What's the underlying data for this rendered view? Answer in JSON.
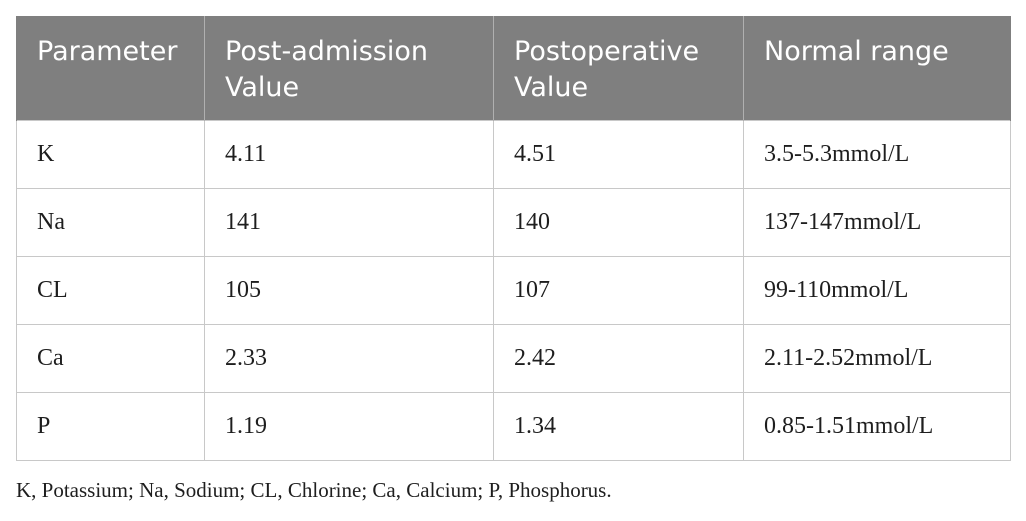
{
  "table": {
    "headers": [
      "Parameter",
      "Post-admission Value",
      "Postoperative Value",
      "Normal range"
    ],
    "rows": [
      [
        "K",
        "4.11",
        "4.51",
        "3.5-5.3mmol/L"
      ],
      [
        "Na",
        "141",
        "140",
        "137-147mmol/L"
      ],
      [
        "CL",
        "105",
        "107",
        "99-110mmol/L"
      ],
      [
        "Ca",
        "2.33",
        "2.42",
        "2.11-2.52mmol/L"
      ],
      [
        "P",
        "1.19",
        "1.34",
        "0.85-1.51mmol/L"
      ]
    ]
  },
  "footnote": "K, Potassium; Na, Sodium; CL, Chlorine; Ca, Calcium; P, Phosphorus.",
  "colors": {
    "header_bg": "#7f7f7f",
    "header_text": "#ffffff",
    "border": "#c8c8c8"
  }
}
